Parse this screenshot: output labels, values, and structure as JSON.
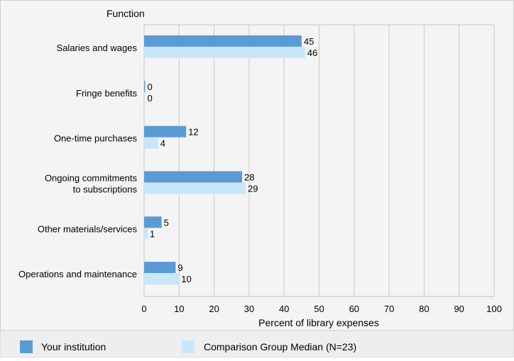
{
  "chart_data": {
    "type": "bar",
    "orientation": "horizontal",
    "title": "Function",
    "xlabel": "Percent of library expenses",
    "xlim": [
      0,
      100
    ],
    "xticks": [
      0,
      10,
      20,
      30,
      40,
      50,
      60,
      70,
      80,
      90,
      100
    ],
    "grid": true,
    "legend_position": "bottom",
    "categories": [
      [
        "Salaries and wages"
      ],
      [
        "Fringe benefits"
      ],
      [
        "One-time purchases"
      ],
      [
        "Ongoing commitments",
        "to subscriptions"
      ],
      [
        "Other materials/services"
      ],
      [
        "Operations and maintenance"
      ]
    ],
    "series": [
      {
        "name": "Your institution",
        "color": "#5b9bd5",
        "values": [
          45,
          0,
          12,
          28,
          5,
          9
        ]
      },
      {
        "name": "Comparison Group Median (N=23)",
        "color": "#c9e6f9",
        "values": [
          46,
          0,
          4,
          29,
          1,
          10
        ]
      }
    ]
  }
}
